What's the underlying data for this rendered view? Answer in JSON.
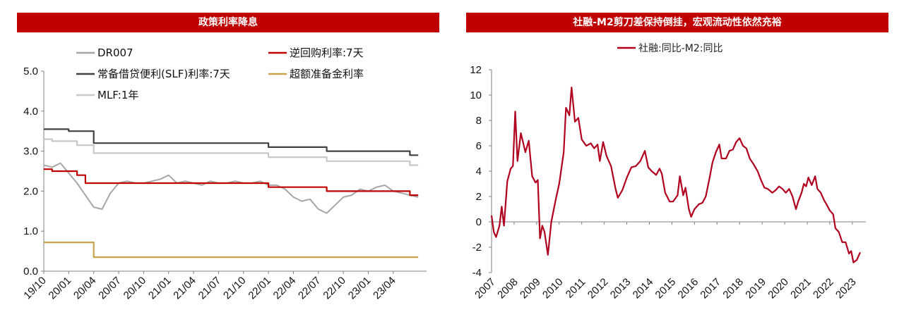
{
  "charts": [
    {
      "title": "政策利率降息",
      "chart_data": {
        "type": "line",
        "ylim": [
          0,
          5
        ],
        "yticks": [
          "0.0",
          "1.0",
          "2.0",
          "3.0",
          "4.0",
          "5.0"
        ],
        "xlim": [
          "2019-10",
          "2023-07"
        ],
        "xticks": [
          "19/10",
          "20/01",
          "20/04",
          "20/07",
          "20/10",
          "21/01",
          "21/04",
          "21/07",
          "21/10",
          "22/01",
          "22/04",
          "22/07",
          "22/10",
          "23/01",
          "23/04"
        ],
        "grid": false,
        "legend": "top",
        "series": [
          {
            "name": "DR007",
            "color": "#a6a6a6",
            "points": [
              [
                "2019-10",
                2.65
              ],
              [
                "2019-11",
                2.6
              ],
              [
                "2019-12",
                2.7
              ],
              [
                "2020-01",
                2.45
              ],
              [
                "2020-02",
                2.2
              ],
              [
                "2020-03",
                1.9
              ],
              [
                "2020-04",
                1.6
              ],
              [
                "2020-05",
                1.55
              ],
              [
                "2020-06",
                1.95
              ],
              [
                "2020-07",
                2.2
              ],
              [
                "2020-08",
                2.25
              ],
              [
                "2020-09",
                2.2
              ],
              [
                "2020-10",
                2.2
              ],
              [
                "2020-11",
                2.25
              ],
              [
                "2020-12",
                2.3
              ],
              [
                "2021-01",
                2.4
              ],
              [
                "2021-02",
                2.2
              ],
              [
                "2021-03",
                2.25
              ],
              [
                "2021-04",
                2.2
              ],
              [
                "2021-05",
                2.15
              ],
              [
                "2021-06",
                2.25
              ],
              [
                "2021-07",
                2.2
              ],
              [
                "2021-08",
                2.2
              ],
              [
                "2021-09",
                2.25
              ],
              [
                "2021-10",
                2.2
              ],
              [
                "2021-11",
                2.2
              ],
              [
                "2021-12",
                2.25
              ],
              [
                "2022-01",
                2.15
              ],
              [
                "2022-02",
                2.15
              ],
              [
                "2022-03",
                2.05
              ],
              [
                "2022-04",
                1.85
              ],
              [
                "2022-05",
                1.75
              ],
              [
                "2022-06",
                1.8
              ],
              [
                "2022-07",
                1.55
              ],
              [
                "2022-08",
                1.45
              ],
              [
                "2022-09",
                1.65
              ],
              [
                "2022-10",
                1.85
              ],
              [
                "2022-11",
                1.9
              ],
              [
                "2022-12",
                2.05
              ],
              [
                "2023-01",
                2.0
              ],
              [
                "2023-02",
                2.1
              ],
              [
                "2023-03",
                2.15
              ],
              [
                "2023-04",
                2.0
              ],
              [
                "2023-05",
                1.95
              ],
              [
                "2023-06",
                1.9
              ],
              [
                "2023-07",
                1.85
              ]
            ]
          },
          {
            "name": "逆回购利率:7天",
            "color": "#c00000",
            "points": [
              [
                "2019-10",
                2.55
              ],
              [
                "2019-11",
                2.55
              ],
              [
                "2019-11",
                2.5
              ],
              [
                "2020-02",
                2.5
              ],
              [
                "2020-02",
                2.4
              ],
              [
                "2020-03",
                2.4
              ],
              [
                "2020-03",
                2.2
              ],
              [
                "2022-01",
                2.2
              ],
              [
                "2022-01",
                2.1
              ],
              [
                "2022-08",
                2.1
              ],
              [
                "2022-08",
                2.0
              ],
              [
                "2023-06",
                2.0
              ],
              [
                "2023-06",
                1.9
              ],
              [
                "2023-07",
                1.9
              ]
            ]
          },
          {
            "name": "常备借贷便利(SLF)利率:7天",
            "color": "#404040",
            "points": [
              [
                "2019-10",
                3.55
              ],
              [
                "2020-01",
                3.55
              ],
              [
                "2020-01",
                3.5
              ],
              [
                "2020-04",
                3.5
              ],
              [
                "2020-04",
                3.2
              ],
              [
                "2022-01",
                3.2
              ],
              [
                "2022-01",
                3.1
              ],
              [
                "2022-08",
                3.1
              ],
              [
                "2022-08",
                3.0
              ],
              [
                "2023-06",
                3.0
              ],
              [
                "2023-06",
                2.9
              ],
              [
                "2023-07",
                2.9
              ]
            ]
          },
          {
            "name": "超额准备金利率",
            "color": "#c9a24c",
            "points": [
              [
                "2019-10",
                0.72
              ],
              [
                "2020-04",
                0.72
              ],
              [
                "2020-04",
                0.35
              ],
              [
                "2023-07",
                0.35
              ]
            ]
          },
          {
            "name": "MLF:1年",
            "color": "#c8c8c8",
            "points": [
              [
                "2019-10",
                3.3
              ],
              [
                "2019-11",
                3.3
              ],
              [
                "2019-11",
                3.25
              ],
              [
                "2020-02",
                3.25
              ],
              [
                "2020-02",
                3.15
              ],
              [
                "2020-04",
                3.15
              ],
              [
                "2020-04",
                2.95
              ],
              [
                "2022-01",
                2.95
              ],
              [
                "2022-01",
                2.85
              ],
              [
                "2022-08",
                2.85
              ],
              [
                "2022-08",
                2.75
              ],
              [
                "2023-06",
                2.75
              ],
              [
                "2023-06",
                2.65
              ],
              [
                "2023-07",
                2.65
              ]
            ]
          }
        ]
      }
    },
    {
      "title": "社融-M2剪刀差保持倒挂，宏观流动性依然充裕",
      "chart_data": {
        "type": "line",
        "ylim": [
          -4,
          12
        ],
        "yticks": [
          "-4",
          "-2",
          "0",
          "2",
          "4",
          "6",
          "8",
          "10",
          "12"
        ],
        "xlim": [
          2007.0,
          2023.6
        ],
        "xticks": [
          "2007",
          "2008",
          "2009",
          "2010",
          "2011",
          "2012",
          "2013",
          "2014",
          "2015",
          "2016",
          "2017",
          "2018",
          "2019",
          "2020",
          "2021",
          "2022",
          "2023"
        ],
        "grid": false,
        "legend": "top",
        "series": [
          {
            "name": "社融:同比-M2:同比",
            "color": "#b0001e",
            "points": [
              [
                2007.0,
                0.5
              ],
              [
                2007.1,
                -0.8
              ],
              [
                2007.2,
                -1.2
              ],
              [
                2007.35,
                -0.3
              ],
              [
                2007.45,
                1.2
              ],
              [
                2007.55,
                -0.3
              ],
              [
                2007.7,
                3.2
              ],
              [
                2007.85,
                4.2
              ],
              [
                2007.95,
                4.4
              ],
              [
                2008.05,
                8.7
              ],
              [
                2008.15,
                4.8
              ],
              [
                2008.3,
                7.0
              ],
              [
                2008.5,
                5.5
              ],
              [
                2008.65,
                6.4
              ],
              [
                2008.8,
                3.6
              ],
              [
                2008.95,
                3.1
              ],
              [
                2009.05,
                3.3
              ],
              [
                2009.15,
                -1.3
              ],
              [
                2009.25,
                -0.3
              ],
              [
                2009.35,
                -0.8
              ],
              [
                2009.5,
                -2.6
              ],
              [
                2009.65,
                0.0
              ],
              [
                2009.85,
                1.8
              ],
              [
                2010.0,
                3.0
              ],
              [
                2010.2,
                5.5
              ],
              [
                2010.3,
                9.0
              ],
              [
                2010.45,
                8.4
              ],
              [
                2010.55,
                10.6
              ],
              [
                2010.7,
                7.9
              ],
              [
                2010.85,
                8.2
              ],
              [
                2011.0,
                6.5
              ],
              [
                2011.2,
                6.0
              ],
              [
                2011.4,
                6.2
              ],
              [
                2011.55,
                5.8
              ],
              [
                2011.7,
                6.1
              ],
              [
                2011.8,
                4.8
              ],
              [
                2011.95,
                6.3
              ],
              [
                2012.1,
                5.2
              ],
              [
                2012.3,
                4.4
              ],
              [
                2012.5,
                2.6
              ],
              [
                2012.6,
                1.9
              ],
              [
                2012.8,
                2.5
              ],
              [
                2013.0,
                3.5
              ],
              [
                2013.2,
                4.3
              ],
              [
                2013.4,
                4.4
              ],
              [
                2013.6,
                4.8
              ],
              [
                2013.8,
                5.6
              ],
              [
                2013.95,
                4.3
              ],
              [
                2014.1,
                4.0
              ],
              [
                2014.3,
                3.7
              ],
              [
                2014.45,
                4.2
              ],
              [
                2014.55,
                3.8
              ],
              [
                2014.7,
                2.3
              ],
              [
                2014.9,
                1.6
              ],
              [
                2015.05,
                1.6
              ],
              [
                2015.25,
                2.1
              ],
              [
                2015.35,
                3.6
              ],
              [
                2015.5,
                2.1
              ],
              [
                2015.6,
                2.7
              ],
              [
                2015.75,
                1.0
              ],
              [
                2015.85,
                0.4
              ],
              [
                2016.0,
                1.0
              ],
              [
                2016.2,
                1.4
              ],
              [
                2016.35,
                1.5
              ],
              [
                2016.5,
                2.0
              ],
              [
                2016.65,
                3.3
              ],
              [
                2016.8,
                4.7
              ],
              [
                2016.95,
                5.5
              ],
              [
                2017.1,
                6.1
              ],
              [
                2017.2,
                5.0
              ],
              [
                2017.4,
                5.0
              ],
              [
                2017.55,
                5.6
              ],
              [
                2017.7,
                5.7
              ],
              [
                2017.85,
                6.3
              ],
              [
                2018.0,
                6.6
              ],
              [
                2018.15,
                6.0
              ],
              [
                2018.3,
                5.8
              ],
              [
                2018.45,
                5.0
              ],
              [
                2018.6,
                4.6
              ],
              [
                2018.8,
                4.0
              ],
              [
                2018.95,
                3.3
              ],
              [
                2019.1,
                2.7
              ],
              [
                2019.25,
                2.6
              ],
              [
                2019.45,
                2.3
              ],
              [
                2019.6,
                2.5
              ],
              [
                2019.75,
                2.8
              ],
              [
                2019.9,
                2.6
              ],
              [
                2020.05,
                2.3
              ],
              [
                2020.2,
                2.6
              ],
              [
                2020.35,
                2.0
              ],
              [
                2020.5,
                1.0
              ],
              [
                2020.6,
                1.6
              ],
              [
                2020.75,
                2.3
              ],
              [
                2020.85,
                3.0
              ],
              [
                2020.95,
                2.8
              ],
              [
                2021.05,
                3.5
              ],
              [
                2021.2,
                2.9
              ],
              [
                2021.35,
                3.6
              ],
              [
                2021.45,
                2.6
              ],
              [
                2021.6,
                2.3
              ],
              [
                2021.75,
                1.7
              ],
              [
                2021.85,
                1.4
              ],
              [
                2022.0,
                0.9
              ],
              [
                2022.15,
                0.6
              ],
              [
                2022.25,
                -0.5
              ],
              [
                2022.4,
                -0.8
              ],
              [
                2022.55,
                -1.6
              ],
              [
                2022.7,
                -1.6
              ],
              [
                2022.85,
                -2.5
              ],
              [
                2022.95,
                -2.3
              ],
              [
                2023.05,
                -3.2
              ],
              [
                2023.2,
                -3.0
              ],
              [
                2023.35,
                -2.4
              ]
            ]
          }
        ]
      }
    }
  ]
}
